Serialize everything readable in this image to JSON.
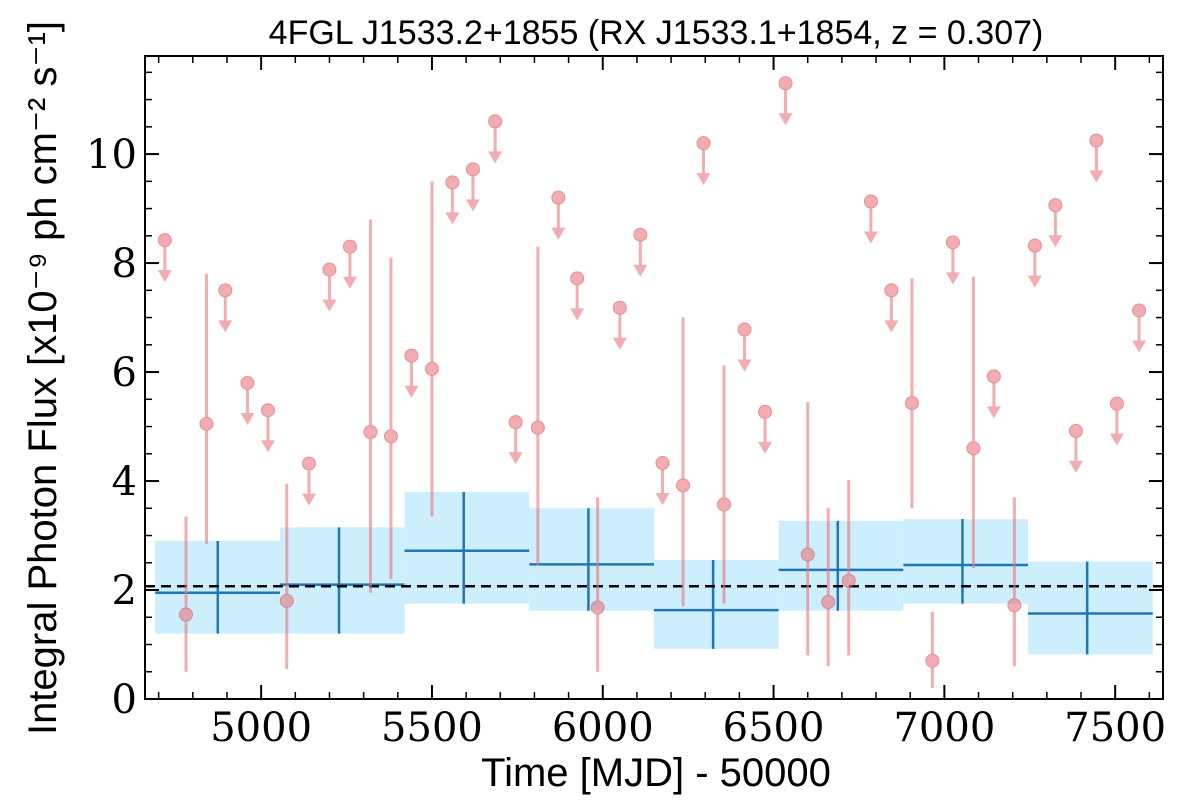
{
  "chart_data": {
    "type": "scatter",
    "title": "4FGL J1533.2+1855 (RX J1533.1+1854, z = 0.307)",
    "xlabel": "Time [MJD] - 50000",
    "ylabel": "Integral Photon Flux [x10⁻⁹ ph cm⁻² s⁻¹]",
    "xlim": [
      4660,
      7640
    ],
    "ylim": [
      0,
      11.8
    ],
    "xticks": [
      "5000",
      "5500",
      "6000",
      "6500",
      "7000",
      "7500"
    ],
    "yticks": [
      "0",
      "2",
      "4",
      "6",
      "8",
      "10"
    ],
    "grid": false,
    "average_flux": 2.07,
    "colors": {
      "points": "#e8777c",
      "bins_fill": "#cdeefc",
      "bins_line": "#1f77b4",
      "average_line": "#000000"
    },
    "monthly_detections": [
      {
        "x": 4780,
        "y": 1.55,
        "ylo": 0.5,
        "yhi": 3.35
      },
      {
        "x": 4840,
        "y": 5.05,
        "ylo": 2.85,
        "yhi": 7.8
      },
      {
        "x": 5075,
        "y": 1.8,
        "ylo": 0.55,
        "yhi": 3.95
      },
      {
        "x": 5320,
        "y": 4.9,
        "ylo": 1.95,
        "yhi": 8.8
      },
      {
        "x": 5380,
        "y": 4.82,
        "ylo": 2.2,
        "yhi": 8.1
      },
      {
        "x": 5500,
        "y": 6.06,
        "ylo": 3.35,
        "yhi": 9.5
      },
      {
        "x": 5810,
        "y": 4.98,
        "ylo": 2.45,
        "yhi": 8.3
      },
      {
        "x": 5985,
        "y": 1.68,
        "ylo": 0.5,
        "yhi": 3.7
      },
      {
        "x": 6235,
        "y": 3.92,
        "ylo": 1.7,
        "yhi": 7.0
      },
      {
        "x": 6355,
        "y": 3.57,
        "ylo": 1.75,
        "yhi": 6.12
      },
      {
        "x": 6600,
        "y": 2.65,
        "ylo": 0.8,
        "yhi": 5.45
      },
      {
        "x": 6660,
        "y": 1.78,
        "ylo": 0.6,
        "yhi": 3.5
      },
      {
        "x": 6720,
        "y": 2.17,
        "ylo": 0.8,
        "yhi": 4.02
      },
      {
        "x": 6905,
        "y": 5.43,
        "ylo": 3.5,
        "yhi": 7.72
      },
      {
        "x": 6965,
        "y": 0.7,
        "ylo": 0.2,
        "yhi": 1.6
      },
      {
        "x": 7085,
        "y": 4.6,
        "ylo": 2.4,
        "yhi": 7.75
      },
      {
        "x": 7205,
        "y": 1.72,
        "ylo": 0.6,
        "yhi": 3.7
      }
    ],
    "monthly_upper_limits": [
      {
        "x": 4718,
        "y": 8.42
      },
      {
        "x": 4895,
        "y": 7.5
      },
      {
        "x": 4960,
        "y": 5.8
      },
      {
        "x": 5020,
        "y": 5.3
      },
      {
        "x": 5140,
        "y": 4.32
      },
      {
        "x": 5200,
        "y": 7.88
      },
      {
        "x": 5260,
        "y": 8.3
      },
      {
        "x": 5440,
        "y": 6.3
      },
      {
        "x": 5560,
        "y": 9.48
      },
      {
        "x": 5620,
        "y": 9.72
      },
      {
        "x": 5685,
        "y": 10.6
      },
      {
        "x": 5745,
        "y": 5.08
      },
      {
        "x": 5870,
        "y": 9.2
      },
      {
        "x": 5925,
        "y": 7.72
      },
      {
        "x": 6050,
        "y": 7.18
      },
      {
        "x": 6110,
        "y": 8.52
      },
      {
        "x": 6175,
        "y": 4.33
      },
      {
        "x": 6295,
        "y": 10.2
      },
      {
        "x": 6415,
        "y": 6.78
      },
      {
        "x": 6475,
        "y": 5.27
      },
      {
        "x": 6535,
        "y": 11.3
      },
      {
        "x": 6785,
        "y": 9.13
      },
      {
        "x": 6845,
        "y": 7.5
      },
      {
        "x": 7025,
        "y": 8.38
      },
      {
        "x": 7145,
        "y": 5.92
      },
      {
        "x": 7265,
        "y": 8.32
      },
      {
        "x": 7325,
        "y": 9.06
      },
      {
        "x": 7385,
        "y": 4.92
      },
      {
        "x": 7445,
        "y": 10.25
      },
      {
        "x": 7505,
        "y": 5.42
      },
      {
        "x": 7570,
        "y": 7.13
      }
    ],
    "binned": [
      {
        "x": 4873,
        "x0": 4690,
        "x1": 5055,
        "y": 1.95,
        "ylo": 1.2,
        "yhi": 2.9
      },
      {
        "x": 5228,
        "x0": 5055,
        "x1": 5420,
        "y": 2.1,
        "ylo": 1.2,
        "yhi": 3.15
      },
      {
        "x": 5593,
        "x0": 5420,
        "x1": 5785,
        "y": 2.72,
        "ylo": 1.75,
        "yhi": 3.8
      },
      {
        "x": 5958,
        "x0": 5785,
        "x1": 6150,
        "y": 2.47,
        "ylo": 1.62,
        "yhi": 3.5
      },
      {
        "x": 6323,
        "x0": 6150,
        "x1": 6515,
        "y": 1.63,
        "ylo": 0.92,
        "yhi": 2.55
      },
      {
        "x": 6688,
        "x0": 6515,
        "x1": 6880,
        "y": 2.37,
        "ylo": 1.62,
        "yhi": 3.27
      },
      {
        "x": 7053,
        "x0": 6880,
        "x1": 7245,
        "y": 2.46,
        "ylo": 1.75,
        "yhi": 3.3
      },
      {
        "x": 7418,
        "x0": 7245,
        "x1": 7610,
        "y": 1.57,
        "ylo": 0.82,
        "yhi": 2.52
      }
    ]
  }
}
